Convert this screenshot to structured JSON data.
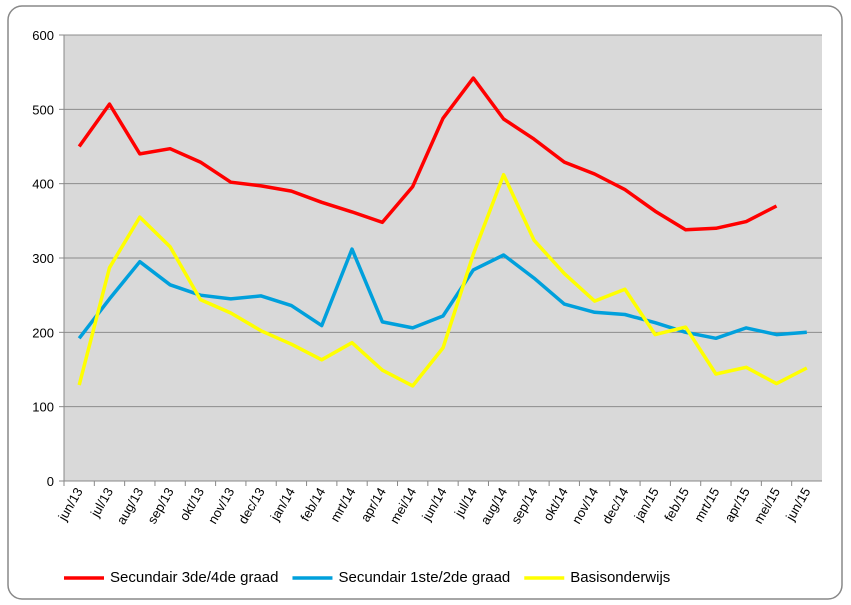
{
  "chart_data": {
    "type": "line",
    "categories": [
      "jun/13",
      "jul/13",
      "aug/13",
      "sep/13",
      "okt/13",
      "nov/13",
      "dec/13",
      "jan/14",
      "feb/14",
      "mrt/14",
      "apr/14",
      "mei/14",
      "jun/14",
      "jul/14",
      "aug/14",
      "sep/14",
      "okt/14",
      "nov/14",
      "dec/14",
      "jan/15",
      "feb/15",
      "mrt/15",
      "apr/15",
      "mei/15",
      "jun/15"
    ],
    "series": [
      {
        "name": "Secundair 3de/4de graad",
        "color": "#ff0000",
        "values": [
          450,
          507,
          440,
          447,
          429,
          402,
          397,
          390,
          375,
          362,
          348,
          396,
          488,
          542,
          487,
          460,
          429,
          413,
          392,
          363,
          338,
          340,
          349,
          370,
          null
        ]
      },
      {
        "name": "Secundair 1ste/2de graad",
        "color": "#00a0dc",
        "values": [
          192,
          245,
          295,
          264,
          250,
          245,
          249,
          236,
          209,
          312,
          214,
          206,
          222,
          284,
          304,
          273,
          238,
          227,
          224,
          213,
          200,
          192,
          206,
          197,
          200
        ]
      },
      {
        "name": "Basisonderwijs",
        "color": "#ffff00",
        "values": [
          129,
          287,
          355,
          315,
          244,
          226,
          202,
          184,
          163,
          186,
          149,
          128,
          179,
          305,
          412,
          324,
          279,
          242,
          258,
          197,
          207,
          144,
          153,
          131,
          152
        ]
      }
    ],
    "ylim": [
      0,
      600
    ],
    "yticks": [
      0,
      100,
      200,
      300,
      400,
      500,
      600
    ],
    "grid": true,
    "legend": "bottom"
  }
}
